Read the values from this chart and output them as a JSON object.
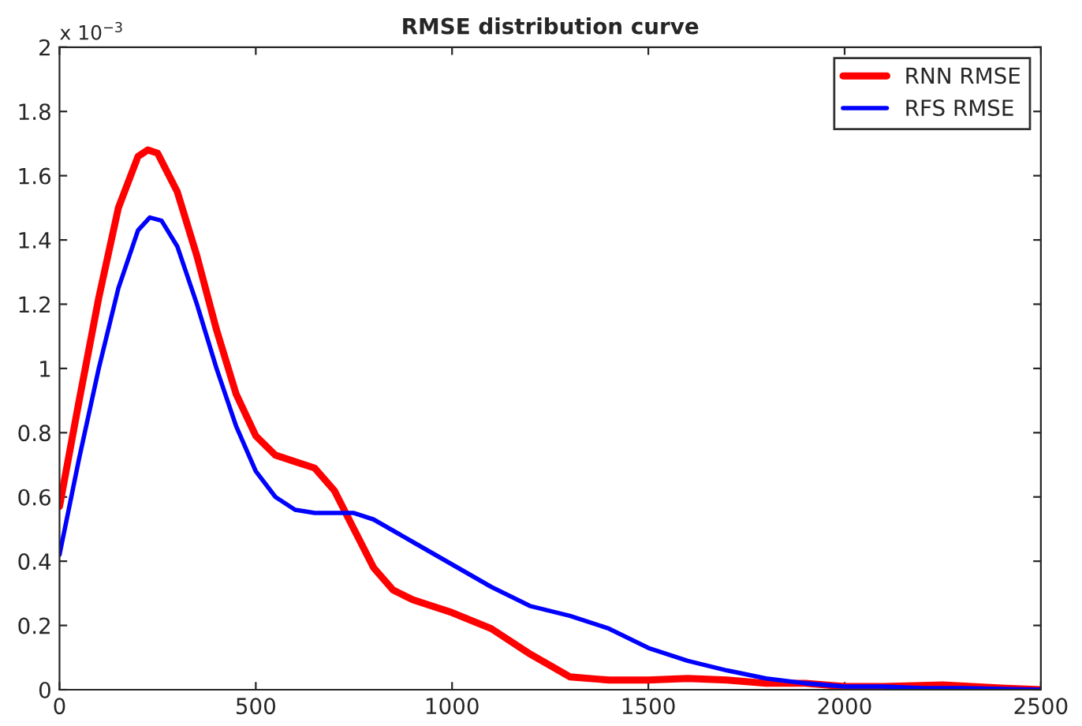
{
  "chart_data": {
    "type": "line",
    "title": "RMSE distribution curve",
    "annotations": [
      "x 10$^{−3}$"
    ],
    "xlim": [
      0,
      2500
    ],
    "xticks": [
      0,
      500,
      1000,
      1500,
      2000,
      2500
    ],
    "ylim": [
      0,
      2
    ],
    "yticks": [
      0,
      0.2,
      0.4,
      0.6,
      0.8,
      1,
      1.2,
      1.4,
      1.6,
      1.8,
      2
    ],
    "grid": false,
    "legend": "top right",
    "marker": "none",
    "line_style": "solid",
    "series": [
      {
        "name": "RNN RMSE",
        "color": "#ff0000",
        "x": [
          0,
          50,
          100,
          150,
          200,
          225,
          250,
          300,
          350,
          400,
          450,
          500,
          550,
          600,
          650,
          700,
          750,
          800,
          850,
          900,
          1000,
          1100,
          1200,
          1300,
          1400,
          1500,
          1600,
          1700,
          1800,
          1900,
          2000,
          2100,
          2250,
          2400,
          2500
        ],
        "values": [
          0.57,
          0.9,
          1.22,
          1.5,
          1.66,
          1.68,
          1.67,
          1.55,
          1.35,
          1.12,
          0.92,
          0.79,
          0.73,
          0.71,
          0.69,
          0.62,
          0.5,
          0.38,
          0.31,
          0.28,
          0.24,
          0.19,
          0.11,
          0.04,
          0.03,
          0.03,
          0.035,
          0.03,
          0.02,
          0.02,
          0.01,
          0.01,
          0.015,
          0.005,
          0
        ]
      },
      {
        "name": "RFS RMSE",
        "color": "#0000ff",
        "x": [
          0,
          50,
          100,
          150,
          200,
          230,
          260,
          300,
          350,
          400,
          450,
          500,
          550,
          600,
          650,
          700,
          750,
          800,
          900,
          1000,
          1100,
          1200,
          1300,
          1400,
          1500,
          1600,
          1700,
          1800,
          1900,
          2000,
          2100,
          2200,
          2300,
          2500
        ],
        "values": [
          0.42,
          0.72,
          1.0,
          1.25,
          1.43,
          1.47,
          1.46,
          1.38,
          1.2,
          1.0,
          0.82,
          0.68,
          0.6,
          0.56,
          0.55,
          0.55,
          0.55,
          0.53,
          0.46,
          0.39,
          0.32,
          0.26,
          0.23,
          0.19,
          0.13,
          0.09,
          0.06,
          0.035,
          0.02,
          0.01,
          0.01,
          0.005,
          0.005,
          0
        ]
      }
    ]
  }
}
